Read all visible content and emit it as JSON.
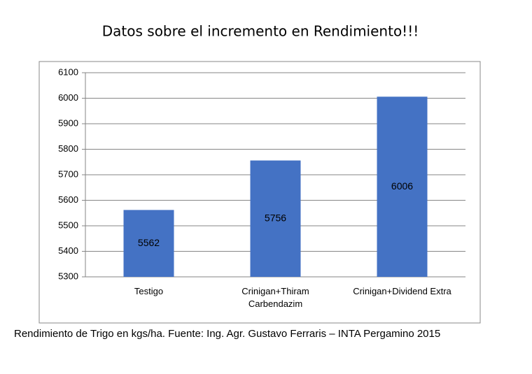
{
  "chart_data": {
    "type": "bar",
    "title": "Datos sobre el incremento en Rendimiento!!!",
    "caption": "Rendimiento de Trigo en kgs/ha. Fuente: Ing. Agr. Gustavo Ferraris – INTA Pergamino 2015",
    "categories": [
      "Testigo",
      "Crinigan+Thiram\nCarbendazim",
      "Crinigan+Dividend Extra"
    ],
    "values": [
      5562,
      5756,
      6006
    ],
    "color": "#4472c4",
    "ylim": [
      5300,
      6100
    ],
    "yticks": [
      5300,
      5400,
      5500,
      5600,
      5700,
      5800,
      5900,
      6000,
      6100
    ],
    "grid": true
  }
}
